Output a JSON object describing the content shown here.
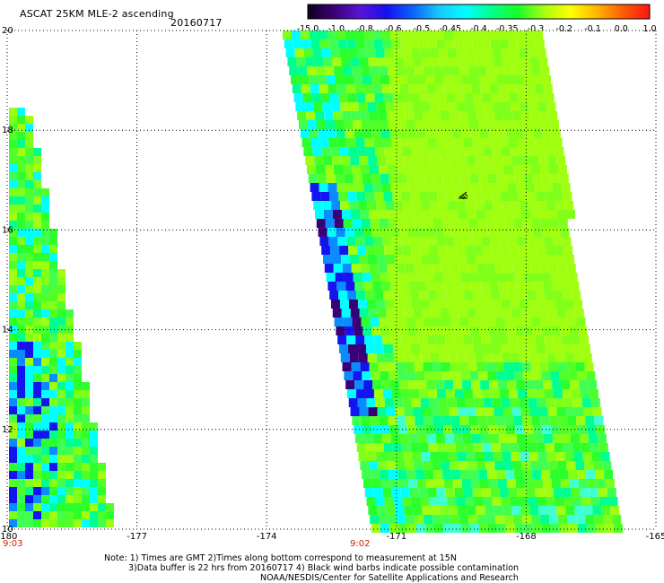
{
  "header": {
    "title": "ASCAT 25KM MLE-2 ascending",
    "date": "20160717"
  },
  "colorbar": {
    "labels": [
      "-15.0",
      "-1.0",
      "-0.8",
      "-0.6",
      "-0.5",
      "-0.45",
      "-0.4",
      "-0.35",
      "-0.3",
      "-0.2",
      "-0.1",
      "0.0",
      "1.0"
    ],
    "stops": [
      "#120018",
      "#3a0078",
      "#5a14d8",
      "#1410f0",
      "#0a64ff",
      "#18c8ff",
      "#00ffff",
      "#00ff8c",
      "#18ff28",
      "#a8ff10",
      "#ffff00",
      "#ffb400",
      "#ff5a00",
      "#ff1414"
    ]
  },
  "axes": {
    "x_ticks": [
      "-180",
      "-177",
      "-174",
      "-171",
      "-168",
      "-165"
    ],
    "y_ticks": [
      "20",
      "18",
      "16",
      "14",
      "12",
      "10"
    ]
  },
  "time_labels": [
    "9:03",
    "9:02"
  ],
  "notes": [
    "Note: 1) Times are GMT 2)Times along bottom correspond to measurement at 15N",
    "3)Data buffer is 22 hrs from 20160717 4) Black wind barbs indicate possible contamination",
    "NOAA/NESDIS/Center for Satellite Applications and Research"
  ],
  "colors": {
    "background": "#ffffff",
    "gridline": "#000000",
    "time_label": "#cc2200"
  }
}
